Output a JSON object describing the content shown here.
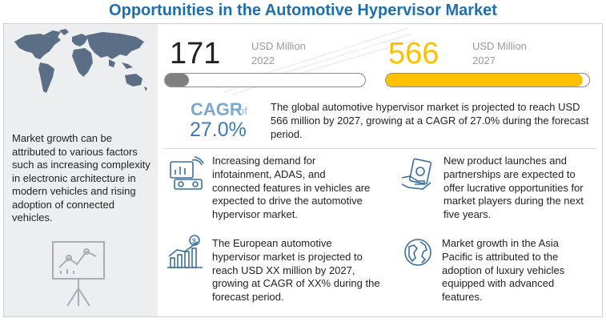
{
  "title": "Opportunities in the Automotive Hypervisor Market",
  "left": {
    "map_icon": "world-map-icon",
    "growth_text": "Market growth can be attributed to various factors such as increasing complexity in electronic architecture in modern vehicles and rising adoption of connected vehicles.",
    "presentation_icon": "presentation-chart-icon"
  },
  "stats": {
    "current": {
      "value": "171",
      "unit": "USD Million",
      "year": "2022",
      "progress": 0.12,
      "color": "#7f7f7f"
    },
    "forecast": {
      "value": "566",
      "unit": "USD Million",
      "year": "2027",
      "progress": 0.97,
      "color": "#ffc000"
    }
  },
  "cagr": {
    "label": "CAGR",
    "of": "of",
    "value": "27.0%",
    "text": "The global automotive hypervisor market is projected to reach USD 566 million by 2027, growing at a CAGR of 27.0% during the forecast period."
  },
  "cards": [
    {
      "icon": "infotainment-dashboard-icon",
      "text": "Increasing demand for infotainment, ADAS, and connected features in vehicles are expected to drive the automotive hypervisor market."
    },
    {
      "icon": "money-hand-icon",
      "text": "New product launches and partnerships are expected to offer lucrative opportunities for market players during the next five years."
    },
    {
      "icon": "growth-chart-dollar-icon",
      "text": "The European automotive hypervisor market is projected to reach USD XX million by 2027, growing at CAGR of XX% during the forecast period."
    },
    {
      "icon": "globe-icon",
      "text": "Market growth in the Asia Pacific is attributed to the adoption of luxury vehicles equipped with advanced features."
    }
  ],
  "colors": {
    "title": "#1f6fae",
    "cagr": "#3a7ab7",
    "panel": "#eceeef",
    "icon": "#3a6f9f"
  }
}
